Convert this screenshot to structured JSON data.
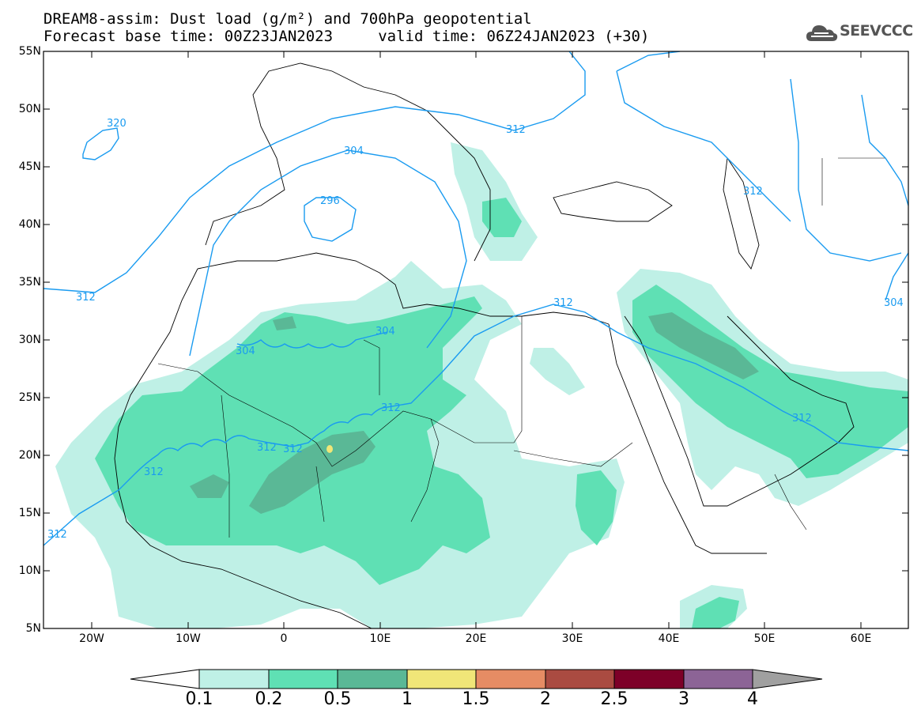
{
  "title": {
    "line1": "DREAM8-assim: Dust load (g/m²) and 700hPa geopotential",
    "line2": "Forecast base time: 00Z23JAN2023     valid time: 06Z24JAN2023 (+30)"
  },
  "logo": {
    "text": "SEEVCCC",
    "icon": "cloud-icon"
  },
  "map": {
    "lat_labels": [
      "55N",
      "50N",
      "45N",
      "40N",
      "35N",
      "30N",
      "25N",
      "20N",
      "15N",
      "10N",
      "5N"
    ],
    "lon_labels": [
      "20W",
      "10W",
      "0",
      "10E",
      "20E",
      "30E",
      "40E",
      "50E",
      "60E"
    ],
    "contour_labels": [
      "312",
      "320",
      "304",
      "296",
      "312",
      "312",
      "304",
      "312",
      "304",
      "312",
      "312",
      "312",
      "312",
      "312",
      "304",
      "312"
    ],
    "contour_color": "#1a9bf0"
  },
  "colorbar": {
    "levels": [
      "0.1",
      "0.2",
      "0.5",
      "1",
      "1.5",
      "2",
      "2.5",
      "3",
      "4"
    ],
    "colors": [
      "#ffffff",
      "#bff0e6",
      "#5fe0b4",
      "#5ab896",
      "#f0e678",
      "#e68c64",
      "#aa4b41",
      "#7d0028",
      "#8c6496",
      "#a0a0a0"
    ]
  }
}
